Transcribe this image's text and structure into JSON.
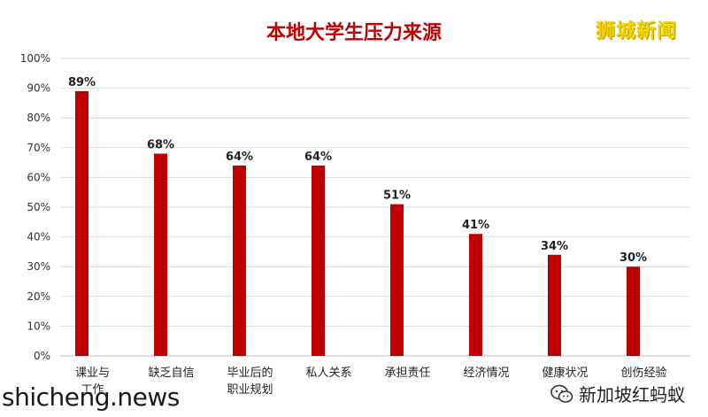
{
  "logo": "狮城新闻",
  "watermark_left": "shicheng.news",
  "watermark_right": "新加坡红蚂蚁",
  "colors": {
    "bar": "#c00000",
    "title": "#c00000",
    "grid": "#d9d9d9"
  },
  "chart_data": {
    "type": "bar",
    "title": "本地大学生压力来源",
    "xlabel": "",
    "ylabel": "",
    "ylim": [
      0,
      100
    ],
    "yticks": [
      "0%",
      "10%",
      "20%",
      "30%",
      "40%",
      "50%",
      "60%",
      "70%",
      "80%",
      "90%",
      "100%"
    ],
    "grid": true,
    "categories": [
      [
        "课业与",
        "工作"
      ],
      [
        "缺乏自信"
      ],
      [
        "毕业后的",
        "职业规划"
      ],
      [
        "私人关系"
      ],
      [
        "承担责任"
      ],
      [
        "经济情况"
      ],
      [
        "健康状况"
      ],
      [
        "创伤经验"
      ]
    ],
    "values": [
      89,
      68,
      64,
      64,
      51,
      41,
      34,
      30
    ],
    "data_labels": [
      "89%",
      "68%",
      "64%",
      "64%",
      "51%",
      "41%",
      "34%",
      "30%"
    ]
  }
}
